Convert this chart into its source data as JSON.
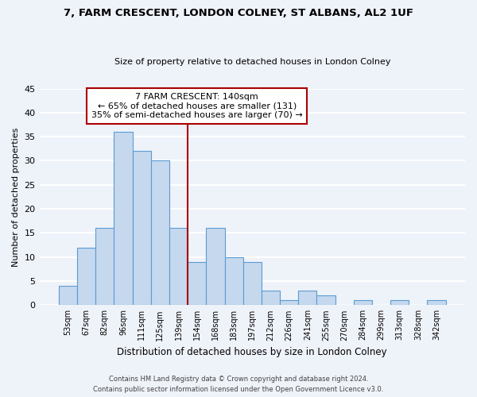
{
  "title": "7, FARM CRESCENT, LONDON COLNEY, ST ALBANS, AL2 1UF",
  "subtitle": "Size of property relative to detached houses in London Colney",
  "xlabel": "Distribution of detached houses by size in London Colney",
  "ylabel": "Number of detached properties",
  "bar_labels": [
    "53sqm",
    "67sqm",
    "82sqm",
    "96sqm",
    "111sqm",
    "125sqm",
    "139sqm",
    "154sqm",
    "168sqm",
    "183sqm",
    "197sqm",
    "212sqm",
    "226sqm",
    "241sqm",
    "255sqm",
    "270sqm",
    "284sqm",
    "299sqm",
    "313sqm",
    "328sqm",
    "342sqm"
  ],
  "bar_values": [
    4,
    12,
    16,
    36,
    32,
    30,
    16,
    9,
    16,
    10,
    9,
    3,
    1,
    3,
    2,
    0,
    1,
    0,
    1,
    0,
    1
  ],
  "bar_color": "#c5d8ed",
  "bar_edge_color": "#5b9bd5",
  "vline_x_index": 6,
  "vline_color": "#aa0000",
  "annotation_title": "7 FARM CRESCENT: 140sqm",
  "annotation_line1": "← 65% of detached houses are smaller (131)",
  "annotation_line2": "35% of semi-detached houses are larger (70) →",
  "annotation_box_color": "#ffffff",
  "annotation_box_edge_color": "#aa0000",
  "ylim": [
    0,
    45
  ],
  "yticks": [
    0,
    5,
    10,
    15,
    20,
    25,
    30,
    35,
    40,
    45
  ],
  "footer_line1": "Contains HM Land Registry data © Crown copyright and database right 2024.",
  "footer_line2": "Contains public sector information licensed under the Open Government Licence v3.0.",
  "bg_color": "#eef2f9",
  "plot_bg_color": "#eef2f9",
  "grid_color": "#ffffff"
}
